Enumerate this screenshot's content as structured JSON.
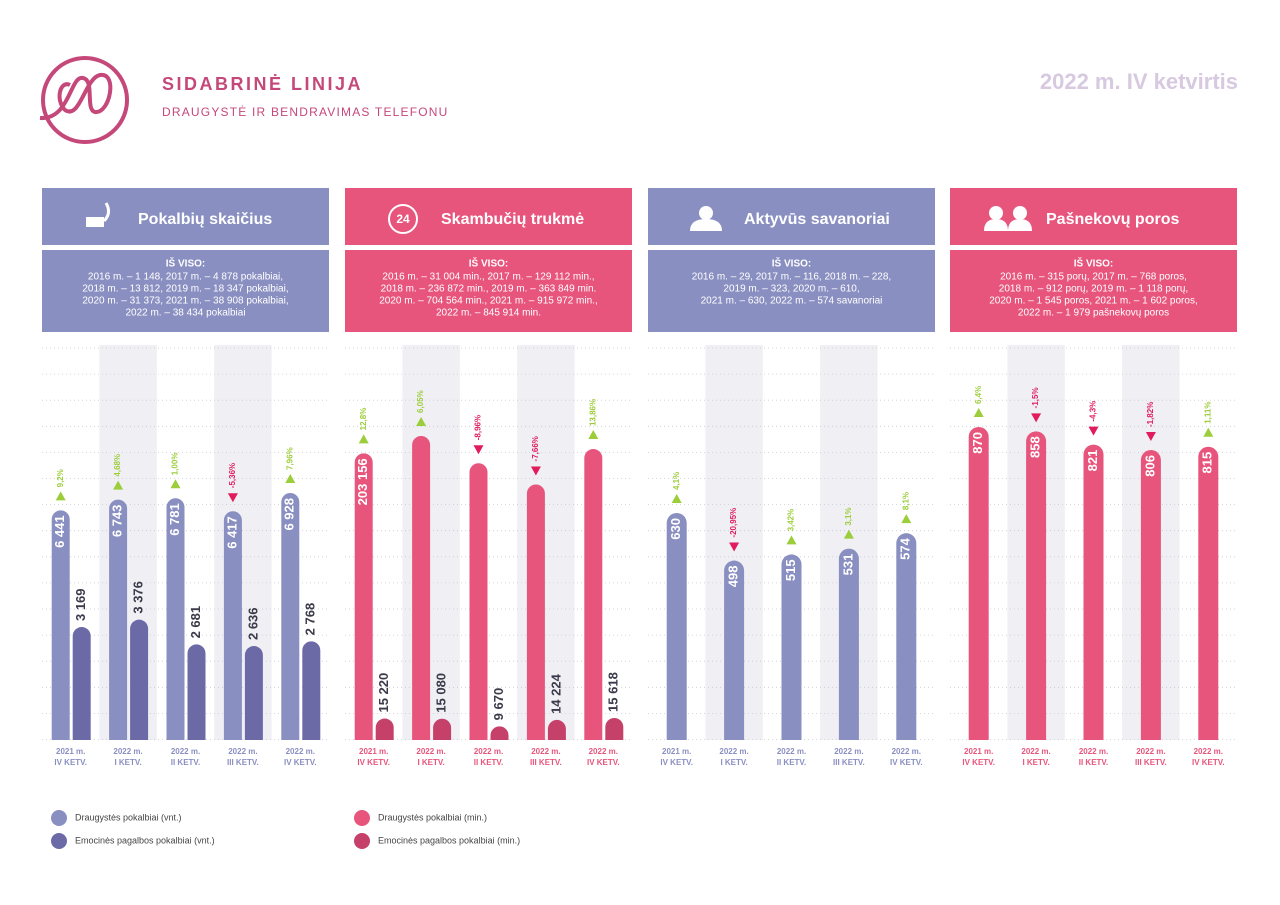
{
  "header": {
    "title": "SIDABRINĖ LINIJA",
    "subtitle": "DRAUGYSTĖ IR BENDRAVIMAS TELEFONU",
    "period": "2022 m. IV ketvirtis"
  },
  "chart_data": [
    {
      "type": "bar",
      "title": "Pokalbių skaičius",
      "color": "#8a8fc1",
      "summary_heading": "IŠ VISO:",
      "summary": [
        "2016 m. – 1 148, 2017 m. – 4 878 pokalbiai,",
        "2018 m. – 13 812, 2019 m. – 18 347 pokalbiai,",
        "2020 m. – 31 373, 2021 m. –  38 908 pokalbiai,",
        "2022 m. – 38 434 pokalbiai"
      ],
      "categories": [
        [
          "2021 m.",
          "IV KETV."
        ],
        [
          "2022 m.",
          "I KETV."
        ],
        [
          "2022 m.",
          "II KETV."
        ],
        [
          "2022 m.",
          "III KETV."
        ],
        [
          "2022 m.",
          "IV KETV."
        ]
      ],
      "series": [
        {
          "name": "Draugystės pokalbiai (vnt.)",
          "color": "#8a8fc1",
          "values": [
            6441,
            6743,
            6781,
            6417,
            6928
          ],
          "value_labels": [
            "6 441",
            "6 743",
            "6 781",
            "6 417",
            "6 928"
          ],
          "changes": [
            9.2,
            4.68,
            1.0,
            -5.36,
            7.96
          ],
          "change_labels": [
            "9,2%",
            "4,68%",
            "1,00%",
            "-5,36%",
            "7,96%"
          ]
        },
        {
          "name": "Emocinės pagalbos pokalbiai (vnt.)",
          "color": "#6b6aa7",
          "values": [
            3169,
            3376,
            2681,
            2636,
            2768
          ],
          "value_labels": [
            "3 169",
            "3 376",
            "2 681",
            "2 636",
            "2 768"
          ]
        }
      ]
    },
    {
      "type": "bar",
      "title": "Skambučių trukmė",
      "color": "#e8557c",
      "summary_heading": "IŠ VISO:",
      "summary": [
        "2016 m. – 31 004 min., 2017 m. – 129 112 min.,",
        "2018 m. – 236 872 min., 2019 m. – 363 849 min.",
        "2020 m. – 704 564 min., 2021 m. – 915 972 min.,",
        "2022 m. – 845 914 min."
      ],
      "categories": [
        [
          "2021 m.",
          "IV KETV."
        ],
        [
          "2022 m.",
          "I KETV."
        ],
        [
          "2022 m.",
          "II KETV."
        ],
        [
          "2022 m.",
          "III KETV."
        ],
        [
          "2022 m.",
          "IV KETV."
        ]
      ],
      "series": [
        {
          "name": "Draugystės pokalbiai (min.)",
          "color": "#e8557c",
          "values": [
            203156,
            215447,
            196143,
            181118,
            206220
          ],
          "value_labels": [
            "203 156",
            null,
            null,
            null,
            null
          ],
          "changes": [
            12.8,
            6.05,
            -8.96,
            -7.66,
            13.86
          ],
          "change_labels": [
            "12,8%",
            "6,05%",
            "-8,96%",
            "-7,66%",
            "13,86%"
          ]
        },
        {
          "name": "Emocinės pagalbos pokalbiai (min.)",
          "color": "#c5416a",
          "values": [
            15220,
            15080,
            9670,
            14224,
            15618
          ],
          "value_labels": [
            "15 220",
            "15 080",
            "9 670",
            "14 224",
            "15 618"
          ]
        }
      ]
    },
    {
      "type": "bar",
      "title": "Aktyvūs savanoriai",
      "color": "#8a8fc1",
      "summary_heading": "IŠ VISO:",
      "summary": [
        "2016 m. – 29, 2017 m. – 116, 2018 m. – 228,",
        "2019 m. – 323, 2020 m. – 610,",
        "2021 m. –  630, 2022 m. – 574 savanoriai"
      ],
      "categories": [
        [
          "2021 m.",
          "IV KETV."
        ],
        [
          "2022 m.",
          "I KETV."
        ],
        [
          "2022 m.",
          "II KETV."
        ],
        [
          "2022 m.",
          "III KETV."
        ],
        [
          "2022 m.",
          "IV KETV."
        ]
      ],
      "series": [
        {
          "color": "#8a8fc1",
          "values": [
            630,
            498,
            515,
            531,
            574
          ],
          "value_labels": [
            "630",
            "498",
            "515",
            "531",
            "574"
          ],
          "changes": [
            4.1,
            -20.95,
            3.42,
            3.1,
            8.1
          ],
          "change_labels": [
            "4,1%",
            "-20,95%",
            "3,42%",
            "3,1%",
            "8,1%"
          ]
        }
      ]
    },
    {
      "type": "bar",
      "title": "Pašnekovų poros",
      "color": "#e8557c",
      "summary_heading": "IŠ VISO:",
      "summary": [
        "2016 m. – 315 porų, 2017 m. – 768 poros,",
        "2018 m. – 912 porų, 2019 m. – 1 118 porų,",
        "2020 m. – 1 545 poros, 2021 m. – 1 602 poros,",
        "2022 m. – 1 979 pašnekovų poros"
      ],
      "categories": [
        [
          "2021 m.",
          "IV KETV."
        ],
        [
          "2022 m.",
          "I KETV."
        ],
        [
          "2022 m.",
          "II KETV."
        ],
        [
          "2022 m.",
          "III KETV."
        ],
        [
          "2022 m.",
          "IV KETV."
        ]
      ],
      "series": [
        {
          "color": "#e8557c",
          "values": [
            870,
            858,
            821,
            806,
            815
          ],
          "value_labels": [
            "870",
            "858",
            "821",
            "806",
            "815"
          ],
          "changes": [
            6.4,
            -1.5,
            -4.3,
            -1.82,
            1.11
          ],
          "change_labels": [
            "6,4%",
            "-1,5%",
            "-4,3%",
            "-1,82%",
            "1,11%"
          ]
        }
      ]
    }
  ]
}
